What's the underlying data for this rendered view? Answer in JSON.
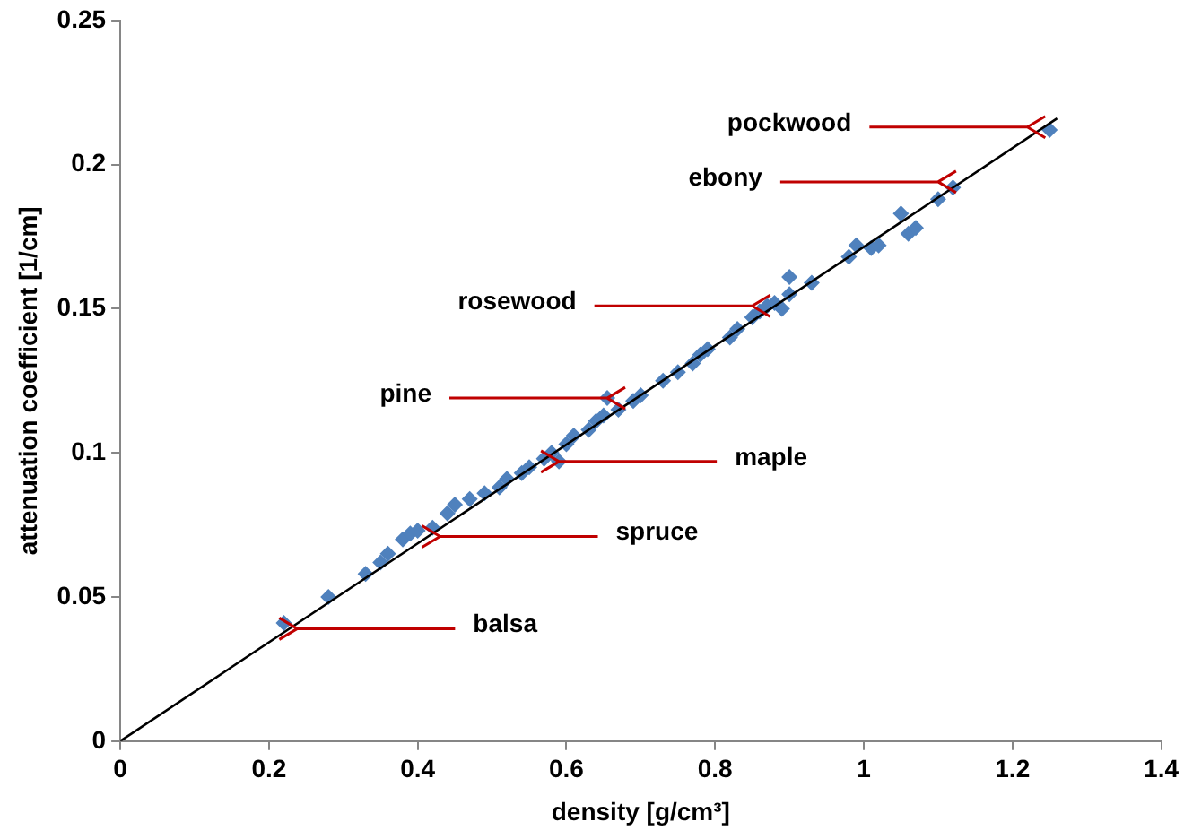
{
  "chart_data": {
    "type": "scatter",
    "xlabel": "density [g/cm³]",
    "ylabel": "attenuation coefficient [1/cm]",
    "xlim": [
      0,
      1.4
    ],
    "xticks": [
      0,
      0.2,
      0.4,
      0.6,
      0.8,
      1,
      1.2,
      1.4
    ],
    "ylim": [
      0,
      0.25
    ],
    "yticks": [
      0,
      0.05,
      0.1,
      0.15,
      0.2,
      0.25
    ],
    "grid": false,
    "legend": false,
    "series": [
      {
        "type": "scatter",
        "color": "#4f81bd",
        "marker": "diamond",
        "x": [
          0.22,
          0.28,
          0.33,
          0.35,
          0.36,
          0.38,
          0.39,
          0.4,
          0.42,
          0.44,
          0.45,
          0.47,
          0.49,
          0.51,
          0.52,
          0.54,
          0.55,
          0.57,
          0.58,
          0.6,
          0.59,
          0.61,
          0.63,
          0.64,
          0.65,
          0.655,
          0.67,
          0.69,
          0.7,
          0.73,
          0.75,
          0.77,
          0.78,
          0.79,
          0.82,
          0.83,
          0.85,
          0.86,
          0.87,
          0.88,
          0.89,
          0.9,
          0.9,
          0.93,
          0.98,
          0.99,
          1.01,
          1.02,
          1.05,
          1.06,
          1.07,
          1.1,
          1.12,
          1.25
        ],
        "values": [
          0.041,
          0.05,
          0.058,
          0.062,
          0.065,
          0.07,
          0.072,
          0.073,
          0.074,
          0.079,
          0.082,
          0.084,
          0.086,
          0.088,
          0.091,
          0.093,
          0.095,
          0.098,
          0.1,
          0.103,
          0.097,
          0.106,
          0.108,
          0.111,
          0.113,
          0.119,
          0.115,
          0.118,
          0.12,
          0.125,
          0.128,
          0.131,
          0.134,
          0.136,
          0.14,
          0.143,
          0.147,
          0.149,
          0.151,
          0.152,
          0.15,
          0.155,
          0.161,
          0.159,
          0.168,
          0.172,
          0.171,
          0.172,
          0.183,
          0.176,
          0.178,
          0.188,
          0.192,
          0.212
        ]
      },
      {
        "type": "line",
        "color": "#000000",
        "marker": "none",
        "line_style": "solid",
        "x": [
          0,
          1.26
        ],
        "values": [
          0,
          0.216
        ]
      }
    ],
    "annotations": [
      {
        "text": "pockwood",
        "x": 1.22,
        "y": 0.213
      },
      {
        "text": "ebony",
        "x": 1.1,
        "y": 0.194
      },
      {
        "text": "rosewood",
        "x": 0.85,
        "y": 0.151
      },
      {
        "text": "pine",
        "x": 0.655,
        "y": 0.119
      },
      {
        "text": "maple",
        "x": 0.59,
        "y": 0.097
      },
      {
        "text": "spruce",
        "x": 0.43,
        "y": 0.071
      },
      {
        "text": "balsa",
        "x": 0.238,
        "y": 0.039
      }
    ]
  }
}
